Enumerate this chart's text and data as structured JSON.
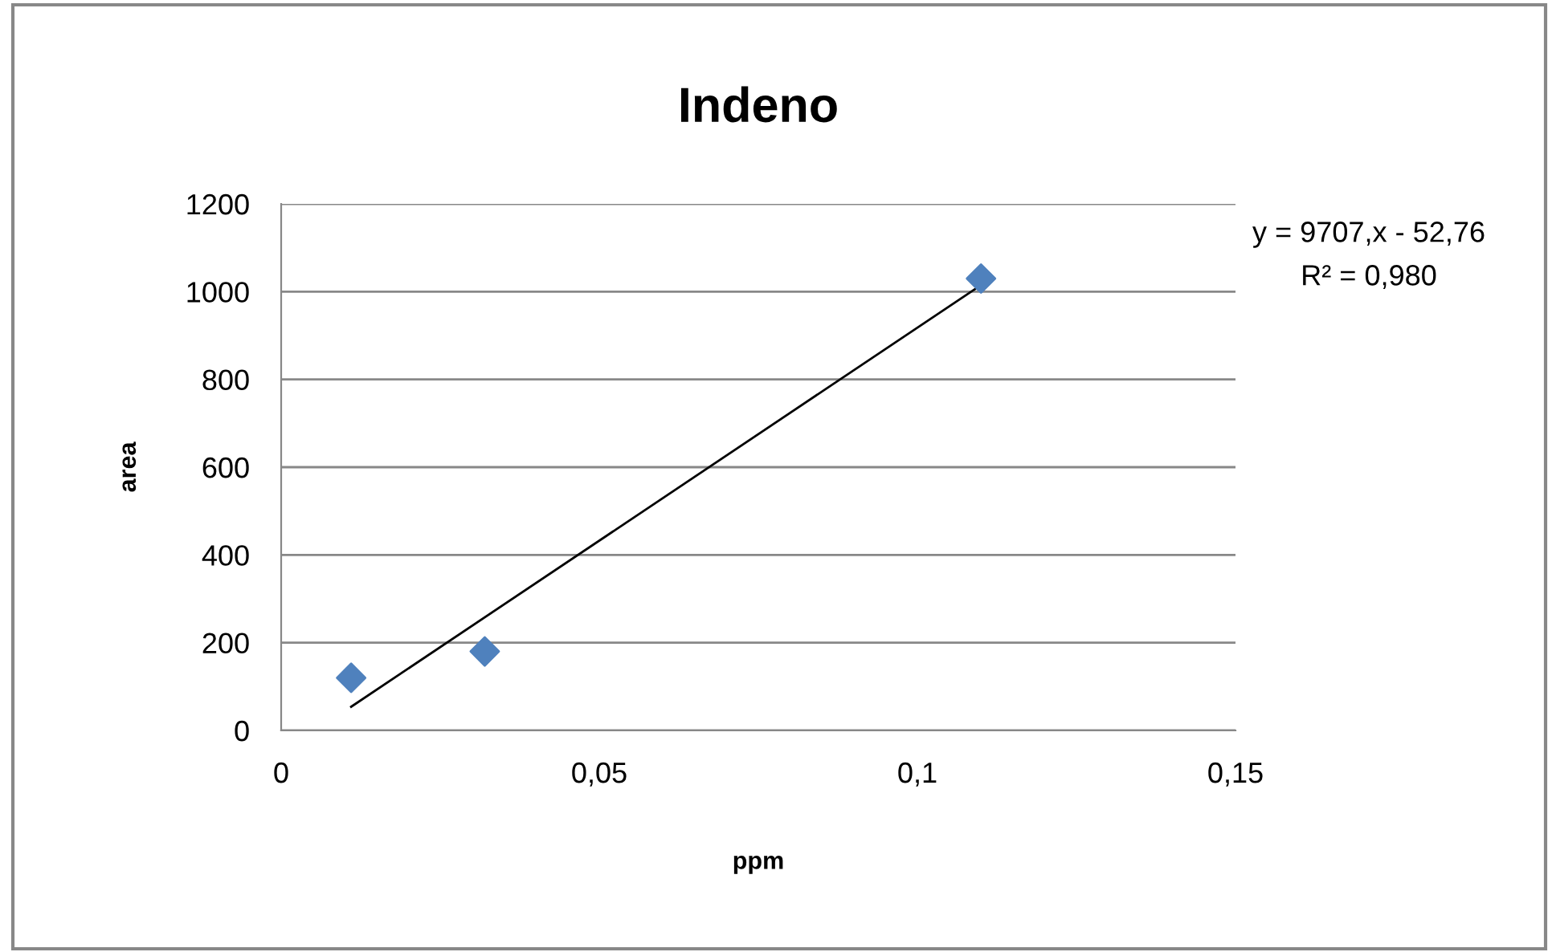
{
  "chart_data": {
    "type": "scatter",
    "title": "Indeno",
    "xlabel": "ppm",
    "ylabel": "area",
    "series": [
      {
        "color": "#4f81bd",
        "marker": "diamond",
        "x": [
          0.011,
          0.032,
          0.11
        ],
        "values": [
          120,
          180,
          1030
        ]
      },
      {
        "type": "line",
        "color": "#000000",
        "marker": "none",
        "line_style": "solid",
        "x": [
          0.011,
          0.11
        ],
        "values": [
          54,
          1015
        ]
      }
    ],
    "xlim": [
      0,
      0.15
    ],
    "xticks": [
      0,
      {
        "value": 0.05,
        "label": "0,05"
      },
      {
        "value": 0.1,
        "label": "0,1"
      },
      {
        "value": 0.15,
        "label": "0,15"
      }
    ],
    "ylim": [
      0,
      1200
    ],
    "yticks": [
      0,
      200,
      400,
      600,
      800,
      1000,
      1200
    ],
    "grid": "y",
    "annotations": [
      "y = 9707,x - 52,76",
      "R² = 0,980"
    ]
  }
}
